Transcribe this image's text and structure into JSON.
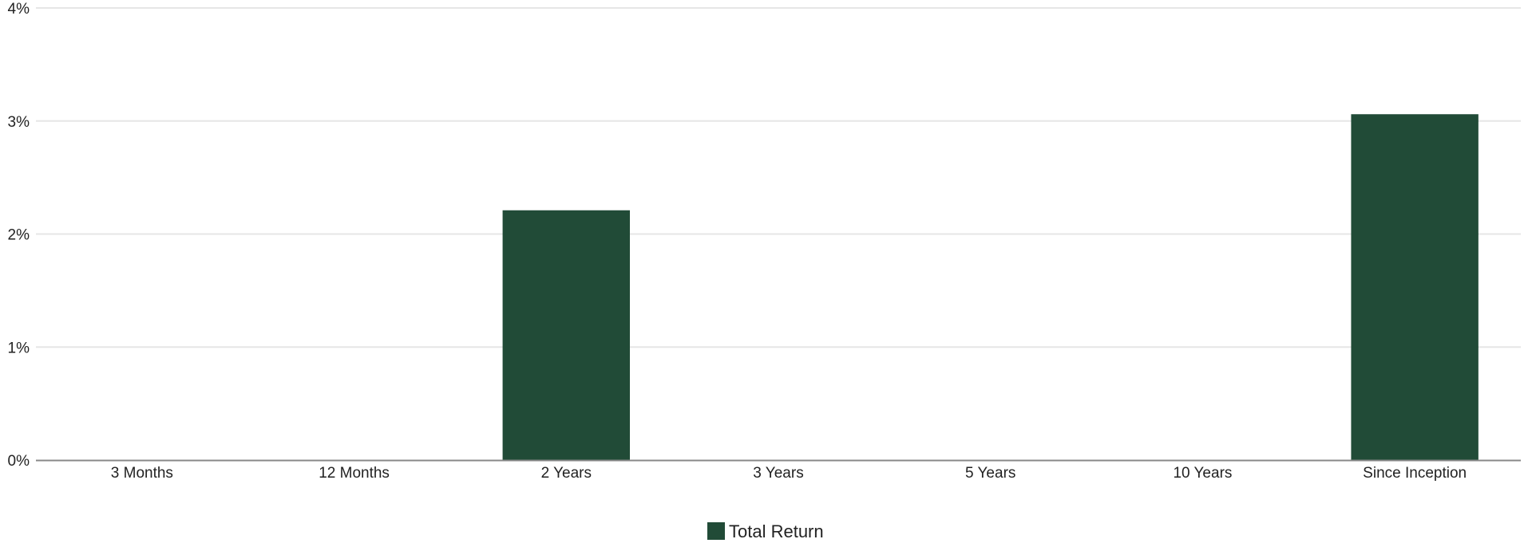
{
  "chart_data": {
    "type": "bar",
    "categories": [
      "3 Months",
      "12 Months",
      "2 Years",
      "3 Years",
      "5 Years",
      "10 Years",
      "Since Inception"
    ],
    "series": [
      {
        "name": "Total Return",
        "values": [
          null,
          null,
          2.21,
          null,
          null,
          null,
          3.06
        ],
        "color": "#214b37"
      }
    ],
    "ylim": [
      0,
      4
    ],
    "yticks": [
      0,
      1,
      2,
      3,
      4
    ],
    "ytick_labels": [
      "0%",
      "1%",
      "2%",
      "3%",
      "4%"
    ],
    "grid": true,
    "legend": {
      "position": "bottom-center",
      "label": "Total Return"
    },
    "colors": {
      "bar": "#214b37",
      "grid": "#e6e6e6",
      "axis": "#888888",
      "text": "#222222"
    }
  }
}
